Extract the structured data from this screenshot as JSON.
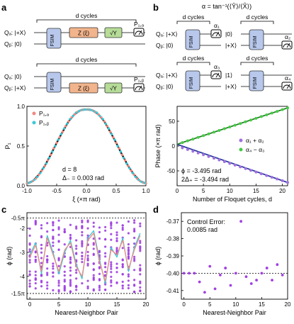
{
  "panels": {
    "a": {
      "label": "a",
      "circuit_top": {
        "cycles_label": "d cycles",
        "qa": "Qₐ: |+X⟩",
        "qb": "Qᵦ: |0⟩",
        "fsim": "FSIM",
        "z": "Z (ξ)",
        "y": "√Y",
        "p": "P₁,ₐ"
      },
      "circuit_bottom": {
        "cycles_label": "d cycles",
        "qa": "Qₐ: |0⟩",
        "qb": "Qᵦ: |+X⟩",
        "fsim": "FSIM",
        "z": "Z (ξ)",
        "y": "√Y",
        "p": "P₁,ᵦ"
      }
    },
    "b": {
      "label": "b",
      "formula": "α = tan⁻¹(⟨Ŷ⟩/⟨X̂⟩)",
      "circuits": [
        {
          "cycles_label": "d cycles",
          "qa": "Qₐ: |+X⟩",
          "qb": "Qᵦ: |0⟩",
          "fsim": "FSIM",
          "alpha": "α₁",
          "meas_on": "a"
        },
        {
          "cycles_label": "d cycles",
          "qa": "|0⟩",
          "qb": "|+X⟩",
          "fsim": "FSIM",
          "alpha": "α₂",
          "meas_on": "b"
        },
        {
          "cycles_label": "d cycles",
          "qa": "Qₐ: |+X⟩",
          "qb": "Qᵦ: |0⟩",
          "fsim": "FSIM",
          "alpha": "α₃",
          "meas_on": "a"
        },
        {
          "cycles_label": "d cycles",
          "qa": "|1⟩",
          "qb": "|+X⟩",
          "fsim": "FSIM",
          "alpha": "α₄",
          "meas_on": "b"
        }
      ]
    },
    "c": {
      "label": "c"
    },
    "d": {
      "label": "d"
    }
  },
  "chart_data": [
    {
      "id": "a",
      "type": "line",
      "xlabel": "ξ (×π rad)",
      "ylabel": "P₁",
      "xlim": [
        -1.0,
        1.0
      ],
      "ylim": [
        0.0,
        1.0
      ],
      "xticks": [
        "-1.0",
        "-0.5",
        "0.0",
        "0.5",
        "1.0"
      ],
      "yticks": [
        "0.0",
        "0.5",
        "1.0"
      ],
      "legend": "top-left",
      "series": [
        {
          "name": "P₁,ₐ",
          "color": "#f08a80",
          "style": "marker",
          "x": [
            -1.0,
            -0.95,
            -0.9,
            -0.85,
            -0.8,
            -0.75,
            -0.7,
            -0.65,
            -0.6,
            -0.55,
            -0.5,
            -0.45,
            -0.4,
            -0.35,
            -0.3,
            -0.25,
            -0.2,
            -0.15,
            -0.1,
            -0.05,
            0.0,
            0.05,
            0.1,
            0.15,
            0.2,
            0.25,
            0.3,
            0.35,
            0.4,
            0.45,
            0.5,
            0.55,
            0.6,
            0.65,
            0.7,
            0.75,
            0.8,
            0.85,
            0.9,
            0.95,
            1.0
          ],
          "y": [
            0.03,
            0.04,
            0.06,
            0.09,
            0.14,
            0.19,
            0.25,
            0.32,
            0.39,
            0.47,
            0.54,
            0.61,
            0.68,
            0.75,
            0.81,
            0.86,
            0.9,
            0.93,
            0.95,
            0.96,
            0.96,
            0.96,
            0.95,
            0.93,
            0.9,
            0.86,
            0.81,
            0.75,
            0.68,
            0.61,
            0.54,
            0.47,
            0.39,
            0.32,
            0.25,
            0.19,
            0.14,
            0.09,
            0.06,
            0.04,
            0.03
          ]
        },
        {
          "name": "P₁,ᵦ",
          "color": "#3cc8d8",
          "style": "marker",
          "x": [
            -0.975,
            -0.925,
            -0.875,
            -0.825,
            -0.775,
            -0.725,
            -0.675,
            -0.625,
            -0.575,
            -0.525,
            -0.475,
            -0.425,
            -0.375,
            -0.325,
            -0.275,
            -0.225,
            -0.175,
            -0.125,
            -0.075,
            -0.025,
            0.025,
            0.075,
            0.125,
            0.175,
            0.225,
            0.275,
            0.325,
            0.375,
            0.425,
            0.475,
            0.525,
            0.575,
            0.625,
            0.675,
            0.725,
            0.775,
            0.825,
            0.875,
            0.925,
            0.975
          ],
          "y": [
            0.035,
            0.05,
            0.075,
            0.11,
            0.16,
            0.22,
            0.28,
            0.35,
            0.43,
            0.5,
            0.58,
            0.65,
            0.72,
            0.78,
            0.84,
            0.88,
            0.92,
            0.94,
            0.955,
            0.96,
            0.96,
            0.955,
            0.94,
            0.92,
            0.88,
            0.84,
            0.78,
            0.72,
            0.65,
            0.58,
            0.5,
            0.43,
            0.35,
            0.28,
            0.22,
            0.16,
            0.11,
            0.075,
            0.05,
            0.035
          ]
        },
        {
          "name": "",
          "color": "#111111",
          "style": "line",
          "x": [
            -1.0,
            -0.9,
            -0.8,
            -0.7,
            -0.6,
            -0.5,
            -0.4,
            -0.3,
            -0.2,
            -0.1,
            0.0,
            0.1,
            0.2,
            0.3,
            0.4,
            0.5,
            0.6,
            0.7,
            0.8,
            0.9,
            1.0
          ],
          "y": [
            0.03,
            0.06,
            0.14,
            0.25,
            0.39,
            0.54,
            0.68,
            0.81,
            0.9,
            0.95,
            0.96,
            0.95,
            0.9,
            0.81,
            0.68,
            0.54,
            0.39,
            0.25,
            0.14,
            0.06,
            0.03
          ]
        }
      ],
      "annotations": [
        "d = 8",
        "Δ₋ = 0.003 rad"
      ]
    },
    {
      "id": "b",
      "type": "scatter",
      "xlabel": "Number of Floquet cycles, d",
      "ylabel": "Phase (×π rad)",
      "xlim": [
        0,
        21
      ],
      "ylim": [
        -80,
        80
      ],
      "xticks": [
        "0",
        "5",
        "10",
        "15",
        "20"
      ],
      "yticks": [
        "-50",
        "0",
        "50"
      ],
      "legend": "right",
      "series": [
        {
          "name": "α₁ + α₂",
          "color": "#a070e0",
          "x": [
            1,
            2,
            3,
            4,
            5,
            6,
            7,
            8,
            9,
            10,
            11,
            12,
            13,
            14,
            15,
            16,
            17,
            18,
            19,
            20,
            21
          ],
          "y": [
            -3.5,
            -7.0,
            -10.5,
            -14.0,
            -17.5,
            -21.0,
            -24.5,
            -28.0,
            -31.5,
            -35.0,
            -38.4,
            -41.9,
            -45.4,
            -48.9,
            -52.4,
            -55.9,
            -59.4,
            -62.9,
            -66.4,
            -69.9,
            -73.4
          ]
        },
        {
          "name": "α₄ − α₃",
          "color": "#44cc44",
          "x": [
            1,
            2,
            3,
            4,
            5,
            6,
            7,
            8,
            9,
            10,
            11,
            12,
            13,
            14,
            15,
            16,
            17,
            18,
            19,
            20,
            21
          ],
          "y": [
            7.0,
            10.5,
            14.0,
            17.5,
            21.0,
            24.5,
            28.0,
            31.5,
            35.0,
            38.4,
            41.9,
            45.4,
            48.9,
            52.4,
            55.9,
            59.4,
            62.9,
            66.4,
            69.9,
            73.4,
            76.9
          ]
        }
      ],
      "annotations": [
        "ϕ = -3.495 rad",
        "2Δ₊ = -3.494 rad"
      ]
    },
    {
      "id": "c",
      "type": "scatter",
      "xlabel": "Nearest-Neighbor Pair",
      "ylabel": "ϕ (rad)",
      "xlim": [
        -0.5,
        20
      ],
      "ylim": [
        -4.95,
        -1.35
      ],
      "xticks": [
        "0",
        "5",
        "10",
        "15",
        "20"
      ],
      "yticks": [
        "-2",
        "-3",
        "-4"
      ],
      "reference_lines": [
        {
          "label": "-0.5π",
          "y": -1.571
        },
        {
          "label": "-1.5π",
          "y": -4.712
        }
      ],
      "series": [
        {
          "name": "",
          "color": "#a040e0",
          "note": "scattered per-pair phases (dense columns)"
        },
        {
          "name": "",
          "color": "#3cc8d8",
          "style": "line",
          "x": [
            0,
            1,
            2,
            3,
            4,
            5,
            6,
            7,
            8,
            9,
            10,
            11,
            12,
            13,
            14,
            15,
            16,
            17,
            18,
            19
          ],
          "y": [
            -3.1,
            -2.6,
            -3.9,
            -2.3,
            -3.0,
            -3.9,
            -3.0,
            -2.5,
            -3.5,
            -4.1,
            -2.4,
            -2.1,
            -3.3,
            -4.3,
            -2.8,
            -3.2,
            -2.4,
            -3.8,
            -2.8,
            -2.2
          ]
        },
        {
          "name": "",
          "color": "#f08a80",
          "style": "line",
          "x": [
            0,
            1,
            2,
            3,
            4,
            5,
            6,
            7,
            8,
            9,
            10,
            11,
            12,
            13,
            14,
            15,
            16,
            17,
            18,
            19
          ],
          "y": [
            -3.2,
            -2.7,
            -3.8,
            -2.4,
            -3.1,
            -3.8,
            -2.9,
            -2.6,
            -3.6,
            -4.0,
            -2.5,
            -2.2,
            -3.4,
            -4.2,
            -2.9,
            -3.1,
            -2.5,
            -3.7,
            -2.9,
            -2.3
          ]
        }
      ]
    },
    {
      "id": "d",
      "type": "scatter",
      "xlabel": "Nearest-Neighbor Pair",
      "ylabel": "ϕ (rad)",
      "xlim": [
        -0.5,
        20
      ],
      "ylim": [
        -0.415,
        -0.365
      ],
      "xticks": [
        "0",
        "5",
        "10",
        "15",
        "20"
      ],
      "yticks": [
        "-0.37",
        "-0.38",
        "-0.39",
        "-0.40",
        "-0.41"
      ],
      "reference_lines": [
        {
          "y": -0.4
        }
      ],
      "series": [
        {
          "name": "",
          "color": "#a040e0",
          "x": [
            0,
            1,
            2,
            3,
            4,
            5,
            6,
            7,
            8,
            9,
            10,
            11,
            12,
            13,
            14,
            15,
            16,
            17,
            18,
            19
          ],
          "y": [
            -0.4,
            -0.4,
            -0.4,
            -0.405,
            -0.411,
            -0.396,
            -0.409,
            -0.401,
            -0.397,
            -0.407,
            -0.4,
            -0.37,
            -0.402,
            -0.406,
            -0.404,
            -0.4,
            -0.397,
            -0.404,
            -0.395,
            -0.401
          ]
        }
      ],
      "annotations": [
        "Control Error:",
        "0.0085 rad"
      ]
    }
  ]
}
